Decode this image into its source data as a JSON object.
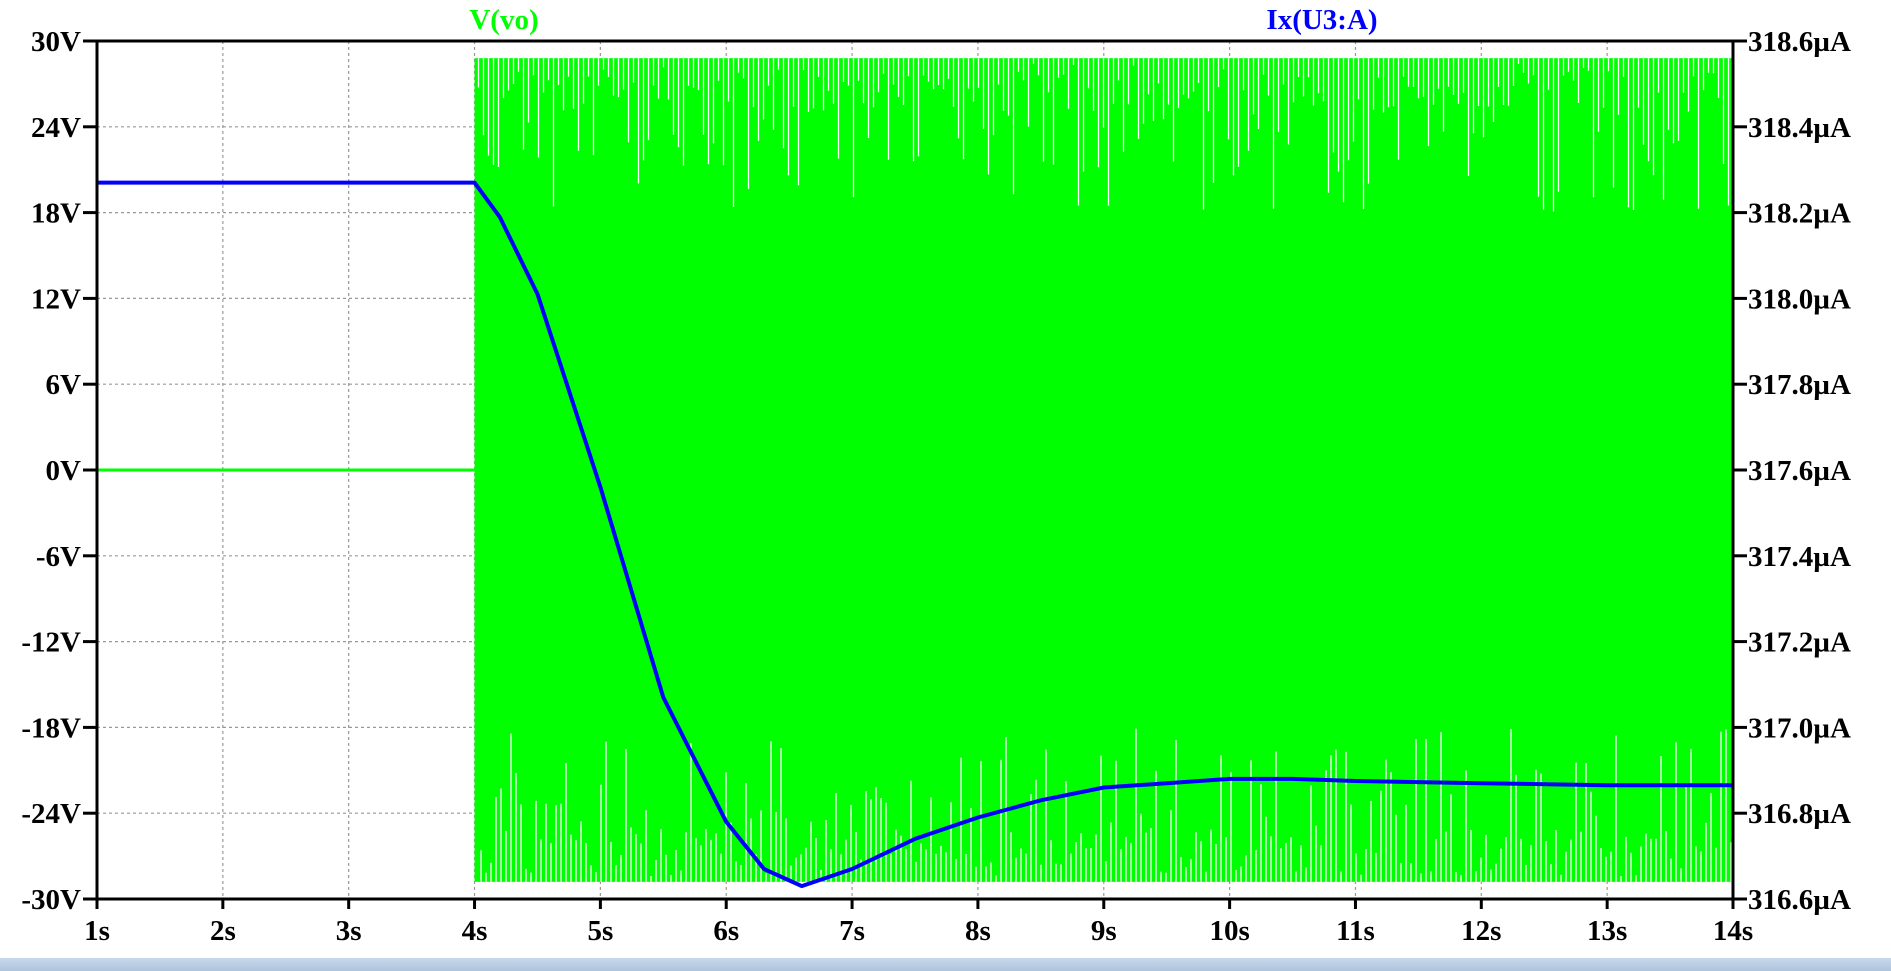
{
  "chart_data": {
    "type": "line",
    "title": "",
    "xlabel": "",
    "ylabel": "",
    "x_range": [
      1,
      14
    ],
    "x_unit": "s",
    "x_ticks": [
      "1s",
      "2s",
      "3s",
      "4s",
      "5s",
      "6s",
      "7s",
      "8s",
      "9s",
      "10s",
      "11s",
      "12s",
      "13s",
      "14s"
    ],
    "y_left": {
      "range": [
        -30,
        30
      ],
      "unit": "V",
      "ticks": [
        "30V",
        "24V",
        "18V",
        "12V",
        "6V",
        "0V",
        "-6V",
        "-12V",
        "-18V",
        "-24V",
        "-30V"
      ],
      "tick_values": [
        30,
        24,
        18,
        12,
        6,
        0,
        -6,
        -12,
        -18,
        -24,
        -30
      ]
    },
    "y_right": {
      "range": [
        316.6,
        318.6
      ],
      "unit": "µA",
      "ticks": [
        "318.6µA",
        "318.4µA",
        "318.2µA",
        "318.0µA",
        "317.8µA",
        "317.6µA",
        "317.4µA",
        "317.2µA",
        "317.0µA",
        "316.8µA",
        "316.6µA"
      ],
      "tick_values": [
        318.6,
        318.4,
        318.2,
        318.0,
        317.8,
        317.6,
        317.4,
        317.2,
        317.0,
        316.8,
        316.6
      ]
    },
    "grid": true,
    "series": [
      {
        "name": "V(vo)",
        "axis": "left",
        "color": "#00ff00",
        "style": "oscillation",
        "x": [
          1,
          4
        ],
        "y": [
          0,
          0
        ],
        "oscillation": {
          "x_start": 4,
          "x_end": 14,
          "high": 28.8,
          "low": -28.8,
          "envelope_high_min": 18.0,
          "envelope_low_max": -18.0
        }
      },
      {
        "name": "Ix(U3:A)",
        "axis": "right",
        "color": "#0000ff",
        "style": "line",
        "x": [
          1,
          4,
          4.2,
          4.5,
          5.0,
          5.5,
          6.0,
          6.3,
          6.6,
          7.0,
          7.5,
          8.0,
          8.5,
          9.0,
          9.5,
          10.0,
          10.5,
          11.0,
          12.0,
          13.0,
          14.0
        ],
        "y": [
          318.27,
          318.27,
          318.19,
          318.01,
          317.56,
          317.07,
          316.78,
          316.67,
          316.63,
          316.67,
          316.74,
          316.79,
          316.83,
          316.86,
          316.87,
          316.88,
          316.88,
          316.875,
          316.87,
          316.865,
          316.865
        ]
      }
    ]
  }
}
